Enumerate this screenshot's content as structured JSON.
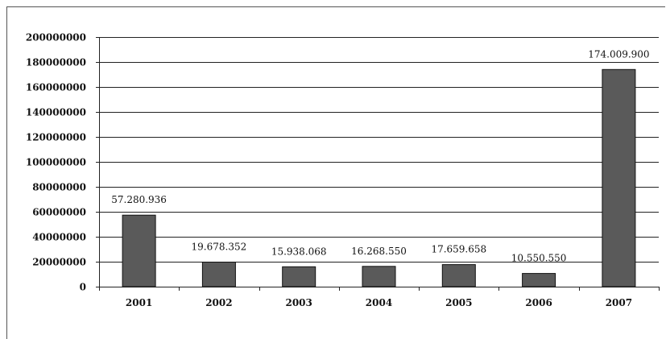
{
  "chart_data": {
    "type": "bar",
    "title": "",
    "xlabel": "",
    "ylabel": "",
    "categories": [
      "2001",
      "2002",
      "2003",
      "2004",
      "2005",
      "2006",
      "2007"
    ],
    "values": [
      57280936,
      19678352,
      15938068,
      16268550,
      17659658,
      10550550,
      174009900
    ],
    "data_labels": [
      "57.280.936",
      "19.678.352",
      "15.938.068",
      "16.268.550",
      "17.659.658",
      "10.550.550",
      "174.009.900"
    ],
    "y_ticks": [
      0,
      20000000,
      40000000,
      60000000,
      80000000,
      100000000,
      120000000,
      140000000,
      160000000,
      180000000,
      200000000
    ],
    "y_tick_labels": [
      "0",
      "20000000",
      "40000000",
      "60000000",
      "80000000",
      "100000000",
      "120000000",
      "140000000",
      "160000000",
      "180000000",
      "200000000"
    ],
    "ylim": [
      0,
      200000000
    ],
    "grid": true,
    "legend": "none",
    "bar_color": "#5a5a5a",
    "bar_edge_color": "#111111",
    "grid_color": "#222222"
  }
}
